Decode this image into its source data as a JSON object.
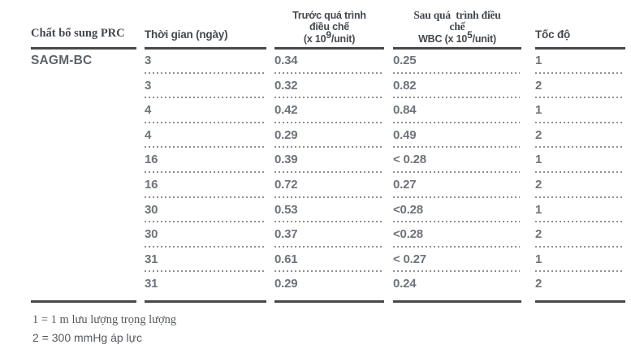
{
  "table": {
    "columns": [
      {
        "key": "additive",
        "header": "Chất bổ sung PRC"
      },
      {
        "key": "time",
        "header": "Thời gian (ngày)"
      },
      {
        "key": "before",
        "line1": "Trước quá trình",
        "line2": "điều chế",
        "unit_prefix": "(x 10",
        "unit_sup": "9",
        "unit_suffix": "/unit)"
      },
      {
        "key": "after",
        "line1": "Sau quá  trình điều",
        "line2": "chế",
        "unit_prefix": "WBC (x 10",
        "unit_sup": "5",
        "unit_suffix": "/unit)"
      },
      {
        "key": "speed",
        "header": "Tốc độ"
      }
    ],
    "rows": [
      {
        "additive": "SAGM-BC",
        "time": "3",
        "before": "0.34",
        "after": "0.25",
        "speed": "1"
      },
      {
        "additive": "",
        "time": "3",
        "before": "0.32",
        "after": "0.82",
        "speed": "2"
      },
      {
        "additive": "",
        "time": "4",
        "before": "0.42",
        "after": "0.84",
        "speed": "1"
      },
      {
        "additive": "",
        "time": "4",
        "before": "0.29",
        "after": "0.49",
        "speed": "2"
      },
      {
        "additive": "",
        "time": "16",
        "before": "0.39",
        "after": "< 0.28",
        "speed": "1"
      },
      {
        "additive": "",
        "time": "16",
        "before": "0.72",
        "after": "0.27",
        "speed": "2"
      },
      {
        "additive": "",
        "time": "30",
        "before": "0.53",
        "after": "<0.28",
        "speed": "1"
      },
      {
        "additive": "",
        "time": "30",
        "before": "0.37",
        "after": "<0.28",
        "speed": "2"
      },
      {
        "additive": "",
        "time": "31",
        "before": "0.61",
        "after": "< 0.27",
        "speed": "1"
      },
      {
        "additive": "",
        "time": "31",
        "before": "0.29",
        "after": "0.24",
        "speed": "2"
      }
    ]
  },
  "footnotes": [
    "1 = 1 m lưu lượng trọng lượng",
    "2 = 300 mmHg áp lực"
  ]
}
